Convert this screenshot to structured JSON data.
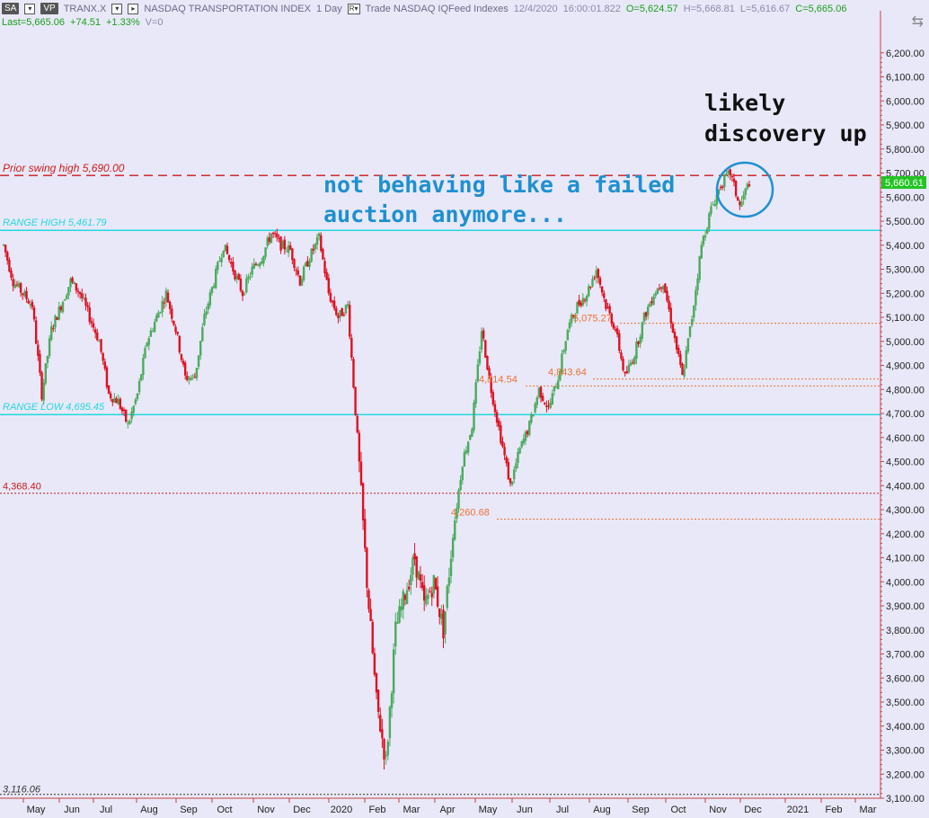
{
  "header": {
    "sa_label": "SA",
    "vp_label": "VP",
    "symbol": "TRANX.X",
    "index_name": "NASDAQ TRANSPORTATION INDEX",
    "period": "1 Day",
    "r_label": "R",
    "source": "Trade  NASDAQ  IQFeed  Indexes",
    "date": "12/4/2020",
    "time": "16:00:01.822",
    "open": "O=5,624.57",
    "high": "H=5,668.81",
    "low": "L=5,616.67",
    "close": "C=5,665.06",
    "last": "Last=5,665.06",
    "change": "+74.51",
    "change_pct": "+1.33%",
    "volume": "V=0"
  },
  "chart_data": {
    "type": "candlestick",
    "ylim": [
      3100,
      6300
    ],
    "y_ticks": [
      "6,200.00",
      "6,100.00",
      "6,000.00",
      "5,900.00",
      "5,800.00",
      "5,700.00",
      "5,600.00",
      "5,500.00",
      "5,400.00",
      "5,300.00",
      "5,200.00",
      "5,100.00",
      "5,000.00",
      "4,900.00",
      "4,800.00",
      "4,700.00",
      "4,600.00",
      "4,500.00",
      "4,400.00",
      "4,300.00",
      "4,200.00",
      "4,100.00",
      "4,000.00",
      "3,900.00",
      "3,800.00",
      "3,700.00",
      "3,600.00",
      "3,500.00",
      "3,400.00",
      "3,300.00",
      "3,200.00",
      "3,100.00"
    ],
    "x_months": [
      "May",
      "Jun",
      "Jul",
      "Aug",
      "Sep",
      "Oct",
      "Nov",
      "Dec",
      "2020",
      "Feb",
      "Mar",
      "Apr",
      "May",
      "Jun",
      "Jul",
      "Aug",
      "Sep",
      "Oct",
      "Nov",
      "Dec",
      "2021",
      "Feb",
      "Mar"
    ],
    "current_price_label": "5,660.61",
    "up_color": "#4caa5c",
    "down_color": "#e01020",
    "levels": [
      {
        "label": "Prior swing high 5,690.00",
        "value": 5690,
        "color": "#cc1a1a",
        "style": "dashed"
      },
      {
        "label": "RANGE HIGH 5,461.79",
        "value": 5461.79,
        "color": "#22d8e0",
        "style": "solid"
      },
      {
        "label": "RANGE LOW 4,695.45",
        "value": 4695.45,
        "color": "#22d8e0",
        "style": "solid"
      },
      {
        "label": "4,368.40",
        "value": 4368.4,
        "color": "#cc1a1a",
        "style": "dotted"
      },
      {
        "label": "5,075.27",
        "value": 5075.27,
        "color": "#f07030",
        "style": "dotted"
      },
      {
        "label": "4,843.64",
        "value": 4843.64,
        "color": "#f07030",
        "style": "dotted"
      },
      {
        "label": "4,814.54",
        "value": 4814.54,
        "color": "#f07030",
        "style": "dotted"
      },
      {
        "label": "4,260.68",
        "value": 4260.68,
        "color": "#f07030",
        "style": "dotted"
      },
      {
        "label": "3,116.06",
        "value": 3116.06,
        "color": "#333333",
        "style": "dotted"
      }
    ],
    "annotations": [
      {
        "text_lines": [
          "not behaving like a failed",
          "auction anymore..."
        ],
        "color": "#1e90d0"
      },
      {
        "text_lines": [
          "likely",
          "discovery up"
        ],
        "color": "#111111"
      }
    ],
    "series": {
      "name": "",
      "points": [
        [
          0,
          5400
        ],
        [
          5,
          5250
        ],
        [
          10,
          5200
        ],
        [
          15,
          5150
        ],
        [
          20,
          4780
        ],
        [
          25,
          5050
        ],
        [
          30,
          5150
        ],
        [
          35,
          5250
        ],
        [
          40,
          5200
        ],
        [
          45,
          5100
        ],
        [
          50,
          5000
        ],
        [
          55,
          4780
        ],
        [
          60,
          4750
        ],
        [
          65,
          4650
        ],
        [
          70,
          4780
        ],
        [
          75,
          5000
        ],
        [
          80,
          5100
        ],
        [
          85,
          5200
        ],
        [
          90,
          5050
        ],
        [
          95,
          4850
        ],
        [
          100,
          4850
        ],
        [
          105,
          5100
        ],
        [
          110,
          5250
        ],
        [
          115,
          5400
        ],
        [
          120,
          5300
        ],
        [
          125,
          5200
        ],
        [
          130,
          5300
        ],
        [
          135,
          5350
        ],
        [
          140,
          5450
        ],
        [
          145,
          5400
        ],
        [
          150,
          5380
        ],
        [
          155,
          5250
        ],
        [
          160,
          5350
        ],
        [
          165,
          5430
        ],
        [
          170,
          5200
        ],
        [
          175,
          5100
        ],
        [
          180,
          5150
        ],
        [
          185,
          4600
        ],
        [
          190,
          4000
        ],
        [
          195,
          3500
        ],
        [
          200,
          3250
        ],
        [
          205,
          3800
        ],
        [
          210,
          3950
        ],
        [
          215,
          4100
        ],
        [
          220,
          3900
        ],
        [
          225,
          4000
        ],
        [
          230,
          3800
        ],
        [
          235,
          4200
        ],
        [
          240,
          4500
        ],
        [
          245,
          4650
        ],
        [
          250,
          5050
        ],
        [
          255,
          4800
        ],
        [
          260,
          4600
        ],
        [
          265,
          4400
        ],
        [
          270,
          4550
        ],
        [
          275,
          4650
        ],
        [
          280,
          4800
        ],
        [
          285,
          4720
        ],
        [
          290,
          4850
        ],
        [
          295,
          5050
        ],
        [
          300,
          5150
        ],
        [
          305,
          5200
        ],
        [
          310,
          5300
        ],
        [
          315,
          5150
        ],
        [
          320,
          5050
        ],
        [
          325,
          4850
        ],
        [
          330,
          4950
        ],
        [
          335,
          5100
        ],
        [
          340,
          5200
        ],
        [
          345,
          5250
        ],
        [
          350,
          5050
        ],
        [
          355,
          4850
        ],
        [
          360,
          5100
        ],
        [
          365,
          5400
        ],
        [
          370,
          5550
        ],
        [
          375,
          5650
        ],
        [
          380,
          5700
        ],
        [
          385,
          5560
        ],
        [
          390,
          5665
        ]
      ]
    }
  }
}
